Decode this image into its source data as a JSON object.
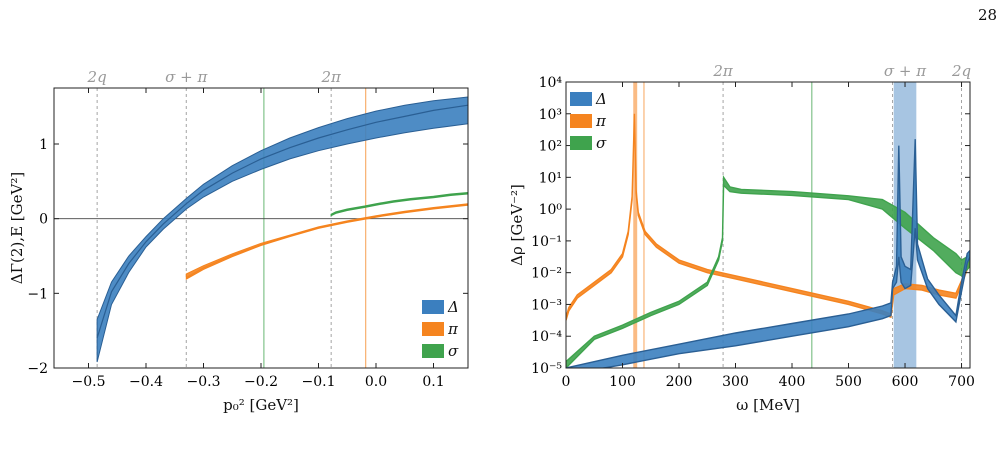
{
  "page_number": "28",
  "colors": {
    "delta": "#3B7FBF",
    "delta_dark": "#2A5F94",
    "pi": "#F5841F",
    "sigma": "#3FA34D",
    "ref_line": "#9a9a9a"
  },
  "legend": [
    {
      "key": "delta",
      "label": "Δ"
    },
    {
      "key": "pi",
      "label": "π"
    },
    {
      "key": "sigma",
      "label": "σ"
    }
  ],
  "chart_data": [
    {
      "type": "line",
      "xlabel": "p₀² [GeV²]",
      "ylabel": "ΔΓ(2),E [GeV²]",
      "xlim": [
        -0.56,
        0.16
      ],
      "ylim": [
        -2,
        1.75
      ],
      "x_ticks": [
        "−0.5",
        "−0.4",
        "−0.3",
        "−0.2",
        "−0.1",
        "0.0",
        "0.1"
      ],
      "x_tick_values": [
        -0.5,
        -0.4,
        -0.3,
        -0.2,
        -0.1,
        0.0,
        0.1
      ],
      "y_ticks": [
        "−2",
        "−1",
        "0",
        "1"
      ],
      "y_tick_values": [
        -2,
        -1,
        0,
        1
      ],
      "top_labels": [
        {
          "text": "2q",
          "x": -0.485
        },
        {
          "text": "σ + π",
          "x": -0.33
        },
        {
          "text": "2π",
          "x": -0.078
        }
      ],
      "dashed_lines_x": [
        -0.485,
        -0.33,
        -0.078
      ],
      "green_line_x": -0.195,
      "orange_line_x": -0.018,
      "zero_line": true,
      "legend_placement": "bottom-right",
      "series": [
        {
          "name": "Δ",
          "x": [
            -0.485,
            -0.46,
            -0.43,
            -0.4,
            -0.37,
            -0.33,
            -0.3,
            -0.25,
            -0.2,
            -0.15,
            -0.1,
            -0.05,
            0.0,
            0.05,
            0.1,
            0.16
          ],
          "lower": [
            -1.92,
            -1.15,
            -0.72,
            -0.38,
            -0.14,
            0.13,
            0.29,
            0.5,
            0.66,
            0.8,
            0.91,
            1.0,
            1.08,
            1.15,
            1.21,
            1.27
          ],
          "center": [
            -1.6,
            -0.98,
            -0.6,
            -0.31,
            -0.07,
            0.2,
            0.38,
            0.61,
            0.8,
            0.95,
            1.08,
            1.19,
            1.29,
            1.37,
            1.45,
            1.52
          ],
          "upper": [
            -1.35,
            -0.85,
            -0.5,
            -0.24,
            0.0,
            0.27,
            0.46,
            0.71,
            0.91,
            1.08,
            1.22,
            1.34,
            1.44,
            1.52,
            1.58,
            1.63
          ]
        },
        {
          "name": "π",
          "x": [
            -0.33,
            -0.3,
            -0.25,
            -0.2,
            -0.15,
            -0.1,
            -0.05,
            0.0,
            0.05,
            0.1,
            0.16
          ],
          "lower": [
            -0.81,
            -0.68,
            -0.51,
            -0.36,
            -0.24,
            -0.13,
            -0.05,
            0.02,
            0.08,
            0.13,
            0.18
          ],
          "center": [
            -0.79,
            -0.66,
            -0.49,
            -0.35,
            -0.23,
            -0.12,
            -0.04,
            0.03,
            0.09,
            0.14,
            0.19
          ],
          "upper": [
            -0.74,
            -0.63,
            -0.47,
            -0.33,
            -0.22,
            -0.11,
            -0.03,
            0.04,
            0.1,
            0.15,
            0.2
          ]
        },
        {
          "name": "σ",
          "x": [
            -0.078,
            -0.07,
            -0.05,
            -0.02,
            0.0,
            0.03,
            0.06,
            0.1,
            0.13,
            0.16
          ],
          "lower": [
            0.04,
            0.07,
            0.11,
            0.15,
            0.18,
            0.22,
            0.25,
            0.28,
            0.31,
            0.33
          ],
          "center": [
            0.05,
            0.08,
            0.12,
            0.16,
            0.19,
            0.23,
            0.26,
            0.29,
            0.32,
            0.34
          ],
          "upper": [
            0.06,
            0.09,
            0.13,
            0.17,
            0.2,
            0.24,
            0.27,
            0.3,
            0.33,
            0.35
          ]
        }
      ]
    },
    {
      "type": "line",
      "xlabel": "ω [MeV]",
      "ylabel": "Δρ [GeV⁻²]",
      "xlim": [
        0,
        715
      ],
      "ylim_log10": [
        -5,
        4
      ],
      "y_scale": "log",
      "x_ticks": [
        "0",
        "100",
        "200",
        "300",
        "400",
        "500",
        "600",
        "700"
      ],
      "x_tick_values": [
        0,
        100,
        200,
        300,
        400,
        500,
        600,
        700
      ],
      "y_ticks": [
        "10⁻⁵",
        "10⁻⁴",
        "10⁻³",
        "10⁻²",
        "10⁻¹",
        "10⁰",
        "10¹",
        "10²",
        "10³",
        "10⁴"
      ],
      "y_tick_exponents": [
        -5,
        -4,
        -3,
        -2,
        -1,
        0,
        1,
        2,
        3,
        4
      ],
      "top_labels": [
        {
          "text": "2π",
          "x": 278
        },
        {
          "text": "σ + π",
          "x": 600
        },
        {
          "text": "2q",
          "x": 700
        }
      ],
      "dashed_lines_x": [
        278,
        578,
        700
      ],
      "green_line_x": 435,
      "orange_band": [
        119,
        126
      ],
      "orange_line_x": 138,
      "blue_band": [
        580,
        620
      ],
      "legend_placement": "top-left",
      "series": [
        {
          "name": "Δ",
          "x": [
            0,
            100,
            200,
            300,
            400,
            500,
            560,
            575,
            578,
            585,
            589,
            593,
            600,
            610,
            618,
            622,
            640,
            660,
            690,
            700,
            710,
            715
          ],
          "lower_log10": [
            -5.2,
            -4.9,
            -4.55,
            -4.3,
            -4.0,
            -3.7,
            -3.45,
            -3.35,
            -2.5,
            -2.3,
            -1.5,
            -2.3,
            -2.5,
            -2.4,
            -0.6,
            -1.6,
            -2.5,
            -3.0,
            -3.55,
            -2.6,
            -1.7,
            -1.5
          ],
          "upper_log10": [
            -5.0,
            -4.6,
            -4.25,
            -3.9,
            -3.6,
            -3.3,
            -3.05,
            -2.95,
            -2.3,
            -1.8,
            2.0,
            -1.5,
            -1.8,
            -1.9,
            2.2,
            -1.1,
            -2.2,
            -2.7,
            -3.35,
            -2.3,
            -1.4,
            -1.3
          ]
        },
        {
          "name": "π",
          "x": [
            0,
            5,
            20,
            50,
            80,
            100,
            110,
            117,
            121,
            124,
            128,
            140,
            160,
            200,
            250,
            300,
            400,
            500,
            560,
            575,
            580,
            600,
            630,
            660,
            690,
            700,
            710,
            715
          ],
          "lower_log10": [
            -3.5,
            -3.2,
            -2.8,
            -2.4,
            -2.0,
            -1.5,
            -0.8,
            0.3,
            3.0,
            0.5,
            -0.2,
            -0.8,
            -1.2,
            -1.7,
            -2.0,
            -2.2,
            -2.6,
            -3.0,
            -3.3,
            -3.4,
            -2.7,
            -2.5,
            -2.55,
            -2.7,
            -2.8,
            -2.4,
            -1.9,
            -1.8
          ],
          "upper_log10": [
            -3.4,
            -3.1,
            -2.7,
            -2.3,
            -1.9,
            -1.4,
            -0.7,
            0.4,
            3.0,
            0.6,
            -0.1,
            -0.7,
            -1.1,
            -1.6,
            -1.9,
            -2.1,
            -2.5,
            -2.9,
            -3.2,
            -3.3,
            -2.5,
            -2.35,
            -2.4,
            -2.55,
            -2.65,
            -2.25,
            -1.75,
            -1.65
          ]
        },
        {
          "name": "σ",
          "x": [
            0,
            50,
            100,
            150,
            200,
            250,
            270,
            277,
            279,
            290,
            310,
            400,
            500,
            560,
            600,
            650,
            690,
            700,
            710,
            715
          ],
          "lower_log10": [
            -5.0,
            -4.1,
            -3.75,
            -3.35,
            -3.0,
            -2.4,
            -1.6,
            -1.0,
            0.75,
            0.55,
            0.5,
            0.43,
            0.3,
            0.0,
            -0.6,
            -1.3,
            -2.0,
            -2.1,
            -1.9,
            -1.8
          ],
          "upper_log10": [
            -4.8,
            -4.0,
            -3.65,
            -3.25,
            -2.9,
            -2.3,
            -1.5,
            -0.9,
            1.0,
            0.7,
            0.62,
            0.55,
            0.42,
            0.3,
            -0.1,
            -0.9,
            -1.4,
            -1.6,
            -1.5,
            -1.4
          ]
        }
      ]
    }
  ]
}
